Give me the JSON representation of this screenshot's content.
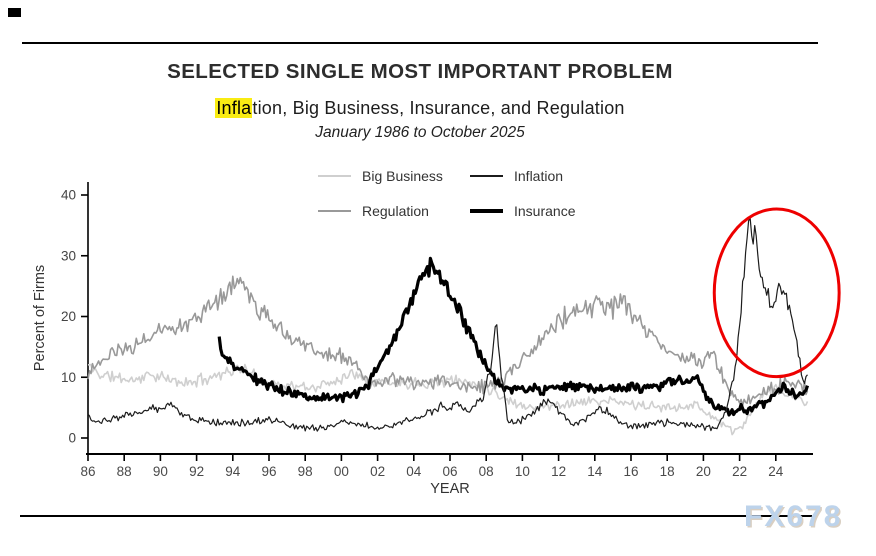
{
  "page": {
    "title": "SELECTED SINGLE MOST IMPORTANT PROBLEM",
    "subtitle_highlight": "Infla",
    "subtitle_rest": "tion, Big Business, Insurance, and Regulation",
    "date_range": "January 1986 to October 2025",
    "watermark": "FX678",
    "highlight_color": "#f9ec13"
  },
  "legend": [
    {
      "label": "Big Business",
      "color": "#cfcfcf",
      "thickness": 2
    },
    {
      "label": "Inflation",
      "color": "#1c1c1c",
      "thickness": 2
    },
    {
      "label": "Regulation",
      "color": "#999999",
      "thickness": 2
    },
    {
      "label": "Insurance",
      "color": "#000000",
      "thickness": 4
    }
  ],
  "chart_data": {
    "type": "line",
    "title": "SELECTED SINGLE MOST IMPORTANT PROBLEM",
    "subtitle": "Inflation, Big Business, Insurance, and Regulation",
    "period": "January 1986 to October 2025",
    "xlabel": "YEAR",
    "ylabel": "Percent of Firms",
    "ylim": [
      0,
      40
    ],
    "y_ticks": [
      0,
      10,
      20,
      30,
      40
    ],
    "x_tick_years": [
      1986,
      1988,
      1990,
      1992,
      1994,
      1996,
      1998,
      2000,
      2002,
      2004,
      2006,
      2008,
      2010,
      2012,
      2014,
      2016,
      2018,
      2020,
      2022,
      2024
    ],
    "x_tick_labels": [
      "86",
      "88",
      "90",
      "92",
      "94",
      "96",
      "98",
      "00",
      "02",
      "04",
      "06",
      "08",
      "10",
      "12",
      "14",
      "16",
      "18",
      "20",
      "22",
      "24"
    ],
    "x_start": 1986.0,
    "x_end": 2025.75,
    "sampling": "monthly",
    "grid": false,
    "legend_position": "top-center",
    "annotation": {
      "shape": "ellipse",
      "note": "red circle highlighting the 2021-2025 inflation surge",
      "cx_year": 2024.05,
      "cy_value": 23.9,
      "rx_years": 3.45,
      "ry_values": 13.8,
      "color": "#ee0000",
      "stroke_width": 3
    },
    "series": [
      {
        "name": "Big Business",
        "color": "#cfcfcf",
        "width": 1.6,
        "seed": 11,
        "noise": 0.7,
        "start": 1986.0,
        "anchors": [
          [
            1986,
            12
          ],
          [
            1986.6,
            10.5
          ],
          [
            1987.5,
            10
          ],
          [
            1988.5,
            9.5
          ],
          [
            1989.5,
            10.5
          ],
          [
            1990.5,
            9.5
          ],
          [
            1991.5,
            9
          ],
          [
            1992.5,
            9.8
          ],
          [
            1993.5,
            10.8
          ],
          [
            1994.4,
            11.5
          ],
          [
            1995.3,
            10
          ],
          [
            1996.3,
            9
          ],
          [
            1997.3,
            8.5
          ],
          [
            1998.3,
            8.2
          ],
          [
            1999.3,
            9
          ],
          [
            2000.2,
            10.2
          ],
          [
            2000.9,
            10.8
          ],
          [
            2001.6,
            9.5
          ],
          [
            2003,
            9
          ],
          [
            2005,
            9.2
          ],
          [
            2006.2,
            9.5
          ],
          [
            2007.3,
            9
          ],
          [
            2008.3,
            8
          ],
          [
            2009,
            6.5
          ],
          [
            2009.8,
            5.5
          ],
          [
            2011,
            5
          ],
          [
            2012.2,
            5.6
          ],
          [
            2013.5,
            6
          ],
          [
            2015,
            6
          ],
          [
            2016.2,
            5.5
          ],
          [
            2017.5,
            5
          ],
          [
            2018.6,
            5.2
          ],
          [
            2019.5,
            5.5
          ],
          [
            2020.3,
            4
          ],
          [
            2021,
            2.5
          ],
          [
            2021.6,
            1
          ],
          [
            2022,
            1.5
          ],
          [
            2022.5,
            3.5
          ],
          [
            2023,
            5.5
          ],
          [
            2023.5,
            7.5
          ],
          [
            2024,
            8
          ],
          [
            2024.5,
            7
          ],
          [
            2025,
            7
          ],
          [
            2025.75,
            5.5
          ]
        ]
      },
      {
        "name": "Regulation",
        "color": "#999999",
        "width": 1.6,
        "seed": 23,
        "noise": 1.0,
        "start": 1986.0,
        "anchors": [
          [
            1986,
            11
          ],
          [
            1987,
            13
          ],
          [
            1988,
            14.5
          ],
          [
            1989,
            16
          ],
          [
            1990,
            17.5
          ],
          [
            1991,
            18.5
          ],
          [
            1992,
            20
          ],
          [
            1993,
            22
          ],
          [
            1994,
            25.5
          ],
          [
            1994.5,
            26
          ],
          [
            1995.2,
            22
          ],
          [
            1996,
            19.5
          ],
          [
            1997,
            17
          ],
          [
            1998,
            15.5
          ],
          [
            1999,
            14
          ],
          [
            2000,
            13.2
          ],
          [
            2000.7,
            12.5
          ],
          [
            2001.3,
            9.5
          ],
          [
            2002,
            9
          ],
          [
            2003,
            9.5
          ],
          [
            2004,
            9
          ],
          [
            2005,
            9.5
          ],
          [
            2006,
            9
          ],
          [
            2007,
            8.7
          ],
          [
            2008.2,
            8.5
          ],
          [
            2009,
            10
          ],
          [
            2010,
            13
          ],
          [
            2011,
            16
          ],
          [
            2012,
            19
          ],
          [
            2012.7,
            21
          ],
          [
            2013.5,
            21
          ],
          [
            2014.2,
            22
          ],
          [
            2015,
            21.5
          ],
          [
            2015.5,
            22
          ],
          [
            2016.2,
            20
          ],
          [
            2017,
            17.5
          ],
          [
            2018,
            14.5
          ],
          [
            2019,
            13
          ],
          [
            2019.8,
            12
          ],
          [
            2020.4,
            14
          ],
          [
            2020.9,
            11
          ],
          [
            2021.5,
            7.5
          ],
          [
            2022.2,
            6
          ],
          [
            2023,
            7
          ],
          [
            2023.8,
            8
          ],
          [
            2024.5,
            9
          ],
          [
            2025.2,
            9
          ],
          [
            2025.75,
            8
          ]
        ]
      },
      {
        "name": "Insurance",
        "color": "#000000",
        "width": 3.2,
        "seed": 37,
        "noise": 0.55,
        "start": 1993.25,
        "anchors": [
          [
            1993.25,
            16
          ],
          [
            1993.45,
            13.5
          ],
          [
            1993.8,
            12.3
          ],
          [
            1994.2,
            11.5
          ],
          [
            1994.7,
            11
          ],
          [
            1995.3,
            9.5
          ],
          [
            1996.2,
            8.5
          ],
          [
            1997.2,
            7.5
          ],
          [
            1998.2,
            7
          ],
          [
            1999.2,
            6.5
          ],
          [
            2000.2,
            6.8
          ],
          [
            2000.8,
            7.2
          ],
          [
            2001.3,
            8.2
          ],
          [
            2001.8,
            10.5
          ],
          [
            2002.3,
            13
          ],
          [
            2002.8,
            16
          ],
          [
            2003.3,
            19
          ],
          [
            2003.8,
            22.5
          ],
          [
            2004.2,
            25.5
          ],
          [
            2004.6,
            27.5
          ],
          [
            2004.9,
            28.5
          ],
          [
            2005.2,
            28
          ],
          [
            2005.6,
            26
          ],
          [
            2006,
            23.5
          ],
          [
            2006.5,
            21
          ],
          [
            2007,
            17.5
          ],
          [
            2007.5,
            14.5
          ],
          [
            2008,
            11.5
          ],
          [
            2008.5,
            9.5
          ],
          [
            2009,
            8.2
          ],
          [
            2010,
            8
          ],
          [
            2011,
            8
          ],
          [
            2012,
            8.2
          ],
          [
            2013,
            8.5
          ],
          [
            2014,
            8
          ],
          [
            2015,
            8
          ],
          [
            2016,
            8.5
          ],
          [
            2017,
            8.2
          ],
          [
            2018,
            9
          ],
          [
            2019,
            9.5
          ],
          [
            2019.6,
            10
          ],
          [
            2020.2,
            7
          ],
          [
            2020.7,
            5
          ],
          [
            2021.2,
            4.5
          ],
          [
            2021.7,
            4.2
          ],
          [
            2022.1,
            5
          ],
          [
            2022.5,
            4.2
          ],
          [
            2023,
            5.5
          ],
          [
            2023.5,
            6
          ],
          [
            2024,
            7.5
          ],
          [
            2024.4,
            8.5
          ],
          [
            2024.8,
            7.5
          ],
          [
            2025.3,
            7
          ],
          [
            2025.75,
            8.2
          ]
        ]
      },
      {
        "name": "Inflation",
        "color": "#1c1c1c",
        "width": 1.2,
        "seed": 53,
        "noise": 0.55,
        "start": 1986.0,
        "anchors": [
          [
            1986,
            4
          ],
          [
            1986.4,
            2.2
          ],
          [
            1987,
            3
          ],
          [
            1988,
            3.5
          ],
          [
            1989,
            4.5
          ],
          [
            1990,
            5
          ],
          [
            1990.6,
            5.8
          ],
          [
            1991.2,
            4
          ],
          [
            1992,
            3
          ],
          [
            1993,
            2.5
          ],
          [
            1994,
            2.6
          ],
          [
            1995,
            2.5
          ],
          [
            1996,
            3.2
          ],
          [
            1997,
            2.2
          ],
          [
            1998,
            1.6
          ],
          [
            1999,
            1.6
          ],
          [
            2000,
            2.6
          ],
          [
            2001,
            2.2
          ],
          [
            2002,
            1.6
          ],
          [
            2003,
            2.2
          ],
          [
            2004,
            3.2
          ],
          [
            2005,
            4.5
          ],
          [
            2005.5,
            5.2
          ],
          [
            2006,
            4.8
          ],
          [
            2006.5,
            5.5
          ],
          [
            2007,
            4.5
          ],
          [
            2007.8,
            6.5
          ],
          [
            2008.3,
            12
          ],
          [
            2008.55,
            20
          ],
          [
            2008.8,
            11
          ],
          [
            2009.2,
            3
          ],
          [
            2009.6,
            2.5
          ],
          [
            2010.2,
            3.2
          ],
          [
            2011,
            5.5
          ],
          [
            2011.5,
            6
          ],
          [
            2012.2,
            3.8
          ],
          [
            2012.8,
            2.2
          ],
          [
            2013.5,
            3.2
          ],
          [
            2014.2,
            4.8
          ],
          [
            2014.7,
            4.5
          ],
          [
            2015.3,
            2.8
          ],
          [
            2016,
            2
          ],
          [
            2017,
            2.2
          ],
          [
            2018,
            2.6
          ],
          [
            2019,
            2.2
          ],
          [
            2020,
            1.8
          ],
          [
            2020.7,
            1.5
          ],
          [
            2021.2,
            4
          ],
          [
            2021.7,
            10
          ],
          [
            2022.1,
            22
          ],
          [
            2022.35,
            31
          ],
          [
            2022.55,
            37
          ],
          [
            2022.7,
            32
          ],
          [
            2022.85,
            34
          ],
          [
            2023.05,
            28
          ],
          [
            2023.3,
            25
          ],
          [
            2023.6,
            23
          ],
          [
            2023.9,
            22
          ],
          [
            2024.2,
            25
          ],
          [
            2024.5,
            23.5
          ],
          [
            2024.8,
            21
          ],
          [
            2025.05,
            17
          ],
          [
            2025.3,
            13
          ],
          [
            2025.55,
            9.5
          ],
          [
            2025.75,
            10.5
          ]
        ]
      }
    ]
  }
}
